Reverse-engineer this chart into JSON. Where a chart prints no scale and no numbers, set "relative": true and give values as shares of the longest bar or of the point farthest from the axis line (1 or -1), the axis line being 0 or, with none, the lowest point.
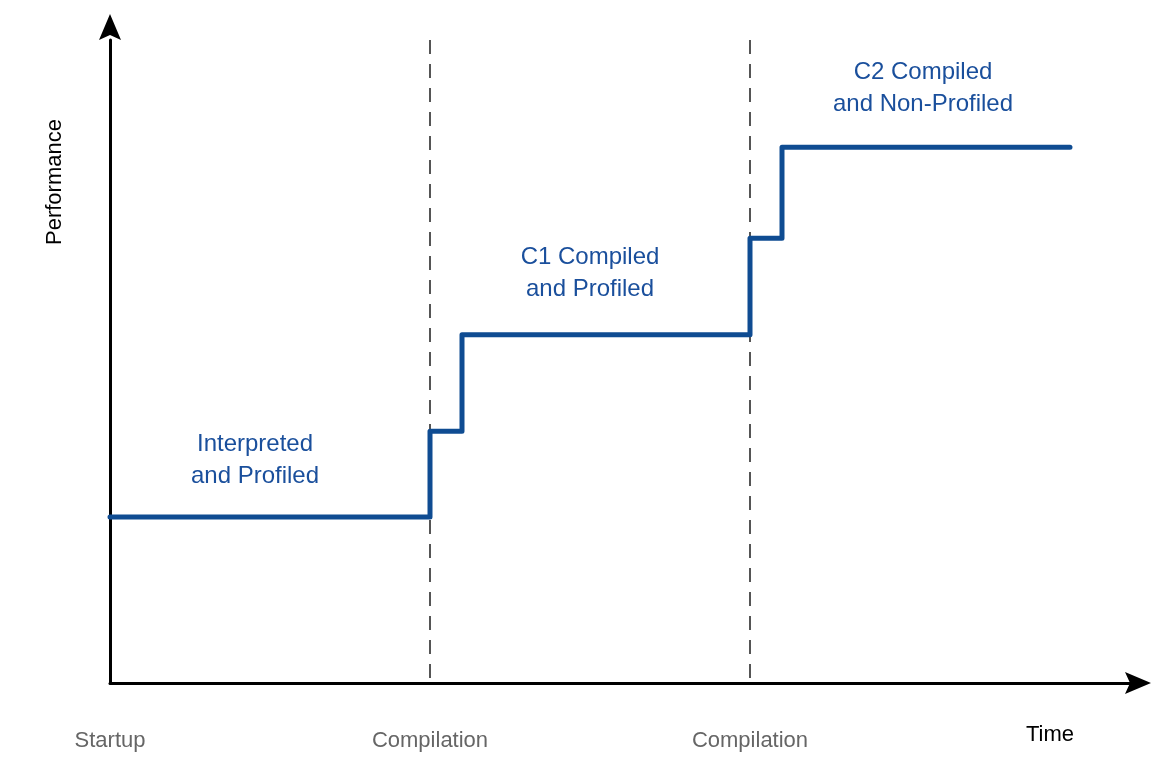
{
  "chart_data": {
    "type": "step",
    "relative": true,
    "xlabel": "Time",
    "ylabel": "Performance",
    "categories": [
      "Startup",
      null,
      null,
      null,
      null,
      null,
      null,
      null,
      null,
      null,
      "Compilation",
      null,
      null,
      null,
      null,
      null,
      null,
      null,
      null,
      null,
      "Compilation",
      null,
      null,
      null,
      null,
      null,
      null,
      null,
      null,
      null,
      null,
      null,
      null
    ],
    "series": [
      {
        "color": "#0f4c92",
        "values": [
          0.31,
          0.31,
          0.31,
          0.31,
          0.31,
          0.31,
          0.31,
          0.31,
          0.31,
          0.31,
          0.47,
          0.65,
          0.65,
          0.65,
          0.65,
          0.65,
          0.65,
          0.65,
          0.65,
          0.65,
          0.83,
          1,
          1,
          1,
          1,
          1,
          1,
          1,
          1,
          1,
          1,
          null,
          null
        ]
      }
    ],
    "annotations": [
      "Interpreted\nand Profiled",
      "C1 Compiled\nand Profiled",
      "C2 Compiled\nand Non-Profiled"
    ],
    "grid": "x",
    "marker": "none",
    "line_style": "solid"
  }
}
